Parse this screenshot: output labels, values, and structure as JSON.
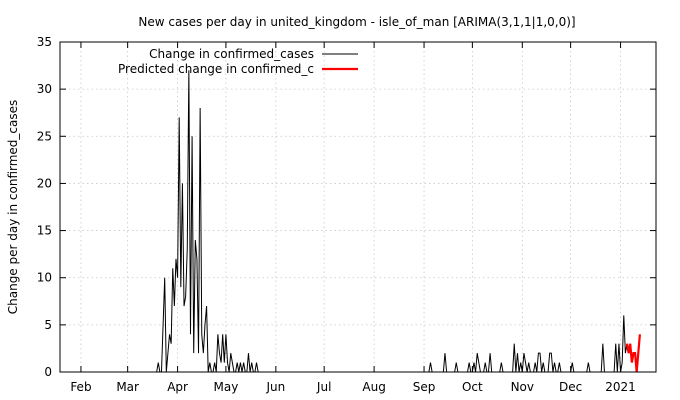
{
  "chart_data": {
    "type": "line",
    "title": "New cases per day in united_kingdom - isle_of_man [ARIMA(3,1,1|1,0,0)]",
    "xlabel": "",
    "ylabel": "Change per day in confirmed_cases",
    "ylim": [
      0,
      35
    ],
    "xlim": [
      "2020-01-19",
      "2021-01-23"
    ],
    "yticks": [
      0,
      5,
      10,
      15,
      20,
      25,
      30,
      35
    ],
    "xticks": [
      {
        "date": "2020-02-01",
        "label": "Feb"
      },
      {
        "date": "2020-03-01",
        "label": "Mar"
      },
      {
        "date": "2020-04-01",
        "label": "Apr"
      },
      {
        "date": "2020-05-01",
        "label": "May"
      },
      {
        "date": "2020-06-01",
        "label": "Jun"
      },
      {
        "date": "2020-07-01",
        "label": "Jul"
      },
      {
        "date": "2020-08-01",
        "label": "Aug"
      },
      {
        "date": "2020-09-01",
        "label": "Sep"
      },
      {
        "date": "2020-10-01",
        "label": "Oct"
      },
      {
        "date": "2020-11-01",
        "label": "Nov"
      },
      {
        "date": "2020-12-01",
        "label": "Dec"
      },
      {
        "date": "2021-01-01",
        "label": "2021"
      }
    ],
    "grid": true,
    "legend_position": "top-left",
    "series": [
      {
        "name": "Change in confirmed_cases",
        "color": "#000000",
        "points": [
          [
            "2020-01-19",
            0
          ],
          [
            "2020-03-19",
            0
          ],
          [
            "2020-03-20",
            1
          ],
          [
            "2020-03-21",
            0
          ],
          [
            "2020-03-22",
            0
          ],
          [
            "2020-03-24",
            10
          ],
          [
            "2020-03-25",
            0
          ],
          [
            "2020-03-26",
            2
          ],
          [
            "2020-03-27",
            4
          ],
          [
            "2020-03-28",
            3
          ],
          [
            "2020-03-29",
            11
          ],
          [
            "2020-03-30",
            7
          ],
          [
            "2020-03-31",
            12
          ],
          [
            "2020-04-01",
            10
          ],
          [
            "2020-04-02",
            27
          ],
          [
            "2020-04-03",
            9
          ],
          [
            "2020-04-04",
            20
          ],
          [
            "2020-04-05",
            7
          ],
          [
            "2020-04-06",
            8
          ],
          [
            "2020-04-07",
            13
          ],
          [
            "2020-04-08",
            32
          ],
          [
            "2020-04-09",
            4
          ],
          [
            "2020-04-10",
            25
          ],
          [
            "2020-04-11",
            2
          ],
          [
            "2020-04-12",
            14
          ],
          [
            "2020-04-13",
            12
          ],
          [
            "2020-04-14",
            2
          ],
          [
            "2020-04-15",
            28
          ],
          [
            "2020-04-16",
            4
          ],
          [
            "2020-04-17",
            2
          ],
          [
            "2020-04-18",
            5
          ],
          [
            "2020-04-19",
            7
          ],
          [
            "2020-04-20",
            0
          ],
          [
            "2020-04-21",
            1
          ],
          [
            "2020-04-22",
            0
          ],
          [
            "2020-04-23",
            0
          ],
          [
            "2020-04-24",
            1
          ],
          [
            "2020-04-25",
            0
          ],
          [
            "2020-04-26",
            4
          ],
          [
            "2020-04-27",
            2
          ],
          [
            "2020-04-28",
            1
          ],
          [
            "2020-04-29",
            4
          ],
          [
            "2020-04-30",
            1
          ],
          [
            "2020-05-01",
            4
          ],
          [
            "2020-05-02",
            1
          ],
          [
            "2020-05-03",
            0
          ],
          [
            "2020-05-04",
            2
          ],
          [
            "2020-05-05",
            1
          ],
          [
            "2020-05-06",
            0
          ],
          [
            "2020-05-07",
            0
          ],
          [
            "2020-05-08",
            1
          ],
          [
            "2020-05-09",
            0
          ],
          [
            "2020-05-10",
            1
          ],
          [
            "2020-05-11",
            0
          ],
          [
            "2020-05-12",
            1
          ],
          [
            "2020-05-13",
            0
          ],
          [
            "2020-05-14",
            0
          ],
          [
            "2020-05-15",
            2
          ],
          [
            "2020-05-16",
            0
          ],
          [
            "2020-05-17",
            1
          ],
          [
            "2020-05-18",
            0
          ],
          [
            "2020-05-19",
            0
          ],
          [
            "2020-05-20",
            1
          ],
          [
            "2020-05-21",
            0
          ],
          [
            "2020-09-04",
            0
          ],
          [
            "2020-09-05",
            1
          ],
          [
            "2020-09-06",
            0
          ],
          [
            "2020-09-13",
            0
          ],
          [
            "2020-09-14",
            2
          ],
          [
            "2020-09-15",
            0
          ],
          [
            "2020-09-20",
            0
          ],
          [
            "2020-09-21",
            1
          ],
          [
            "2020-09-22",
            0
          ],
          [
            "2020-09-28",
            0
          ],
          [
            "2020-09-29",
            1
          ],
          [
            "2020-09-30",
            0
          ],
          [
            "2020-10-01",
            0
          ],
          [
            "2020-10-02",
            1
          ],
          [
            "2020-10-03",
            0
          ],
          [
            "2020-10-04",
            2
          ],
          [
            "2020-10-05",
            1
          ],
          [
            "2020-10-06",
            0
          ],
          [
            "2020-10-08",
            0
          ],
          [
            "2020-10-09",
            1
          ],
          [
            "2020-10-10",
            0
          ],
          [
            "2020-10-11",
            0
          ],
          [
            "2020-10-12",
            2
          ],
          [
            "2020-10-13",
            0
          ],
          [
            "2020-10-18",
            0
          ],
          [
            "2020-10-19",
            1
          ],
          [
            "2020-10-20",
            0
          ],
          [
            "2020-10-26",
            0
          ],
          [
            "2020-10-27",
            3
          ],
          [
            "2020-10-28",
            0
          ],
          [
            "2020-10-29",
            2
          ],
          [
            "2020-10-30",
            0
          ],
          [
            "2020-10-31",
            1
          ],
          [
            "2020-11-01",
            0
          ],
          [
            "2020-11-02",
            2
          ],
          [
            "2020-11-03",
            1
          ],
          [
            "2020-11-04",
            0
          ],
          [
            "2020-11-05",
            1
          ],
          [
            "2020-11-06",
            0
          ],
          [
            "2020-11-08",
            0
          ],
          [
            "2020-11-09",
            1
          ],
          [
            "2020-11-10",
            0
          ],
          [
            "2020-11-11",
            2
          ],
          [
            "2020-11-12",
            2
          ],
          [
            "2020-11-13",
            0
          ],
          [
            "2020-11-14",
            1
          ],
          [
            "2020-11-15",
            0
          ],
          [
            "2020-11-17",
            0
          ],
          [
            "2020-11-18",
            2
          ],
          [
            "2020-11-19",
            2
          ],
          [
            "2020-11-20",
            0
          ],
          [
            "2020-11-21",
            1
          ],
          [
            "2020-11-22",
            0
          ],
          [
            "2020-11-23",
            0
          ],
          [
            "2020-11-24",
            1
          ],
          [
            "2020-11-25",
            0
          ],
          [
            "2020-12-01",
            0
          ],
          [
            "2020-12-02",
            1
          ],
          [
            "2020-12-03",
            0
          ],
          [
            "2020-12-11",
            0
          ],
          [
            "2020-12-12",
            1
          ],
          [
            "2020-12-13",
            0
          ],
          [
            "2020-12-20",
            0
          ],
          [
            "2020-12-21",
            3
          ],
          [
            "2020-12-22",
            0
          ],
          [
            "2020-12-28",
            0
          ],
          [
            "2020-12-29",
            3
          ],
          [
            "2020-12-30",
            0
          ],
          [
            "2020-12-31",
            3
          ],
          [
            "2021-01-01",
            0
          ],
          [
            "2021-01-02",
            1
          ],
          [
            "2021-01-03",
            6
          ],
          [
            "2021-01-04",
            2
          ],
          [
            "2021-01-05",
            3
          ]
        ]
      },
      {
        "name": "Predicted change in confirmed_c",
        "color": "#ff0000",
        "points": [
          [
            "2021-01-05",
            3
          ],
          [
            "2021-01-06",
            2
          ],
          [
            "2021-01-07",
            3
          ],
          [
            "2021-01-08",
            1
          ],
          [
            "2021-01-09",
            2
          ],
          [
            "2021-01-10",
            2
          ],
          [
            "2021-01-11",
            0
          ],
          [
            "2021-01-12",
            2
          ],
          [
            "2021-01-13",
            4
          ]
        ]
      }
    ]
  }
}
